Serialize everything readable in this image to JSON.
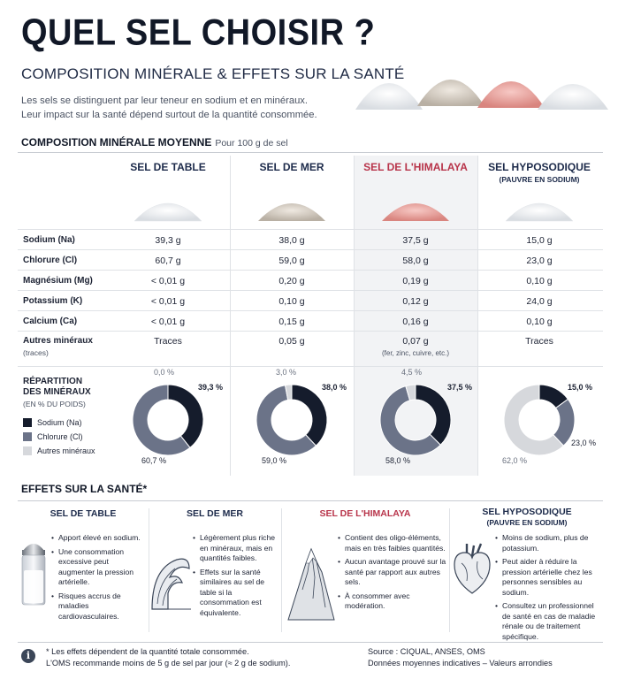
{
  "header": {
    "title": "QUEL SEL CHOISIR ?",
    "subtitle": "COMPOSITION MINÉRALE & EFFETS SUR LA SANTÉ",
    "intro_line1": "Les sels se distinguent par leur teneur en sodium et en minéraux.",
    "intro_line2": "Leur impact sur la santé dépend surtout de la quantité consommée."
  },
  "composition": {
    "heading": "COMPOSITION MINÉRALE MOYENNE",
    "heading_sub": "Pour 100 g de sel",
    "columns": [
      {
        "name": "SEL DE TABLE",
        "note": ""
      },
      {
        "name": "SEL DE MER",
        "note": ""
      },
      {
        "name": "SEL DE L'HIMALAYA",
        "note": ""
      },
      {
        "name": "SEL HYPOSODIQUE",
        "note": "(PAUVRE EN SODIUM)"
      }
    ],
    "rows": [
      {
        "label": "Sodium (Na)",
        "label_note": "",
        "values": [
          "39,3 g",
          "38,0 g",
          "37,5 g",
          "15,0 g"
        ],
        "extra": [
          "",
          "",
          "",
          ""
        ]
      },
      {
        "label": "Chlorure (Cl)",
        "label_note": "",
        "values": [
          "60,7 g",
          "59,0 g",
          "58,0 g",
          "23,0 g"
        ],
        "extra": [
          "",
          "",
          "",
          ""
        ]
      },
      {
        "label": "Magnésium (Mg)",
        "label_note": "",
        "values": [
          "< 0,01 g",
          "0,20 g",
          "0,19 g",
          "0,10 g"
        ],
        "extra": [
          "",
          "",
          "",
          ""
        ]
      },
      {
        "label": "Potassium (K)",
        "label_note": "",
        "values": [
          "< 0,01 g",
          "0,10 g",
          "0,12 g",
          "24,0 g"
        ],
        "extra": [
          "",
          "",
          "",
          ""
        ]
      },
      {
        "label": "Calcium (Ca)",
        "label_note": "",
        "values": [
          "< 0,01 g",
          "0,15 g",
          "0,16 g",
          "0,10 g"
        ],
        "extra": [
          "",
          "",
          "",
          ""
        ]
      },
      {
        "label": "Autres minéraux",
        "label_note": "(traces)",
        "values": [
          "Traces",
          "0,05 g",
          "0,07 g",
          "Traces"
        ],
        "extra": [
          "",
          "",
          "(fer, zinc, cuivre, etc.)",
          ""
        ]
      }
    ],
    "repartition": {
      "label_line1": "RÉPARTITION",
      "label_line2": "DES MINÉRAUX",
      "label_note": "(EN % DU POIDS)",
      "legend": [
        {
          "name": "Sodium (Na)",
          "color": "#151c2c"
        },
        {
          "name": "Chlorure (Cl)",
          "color": "#6b7388"
        },
        {
          "name": "Autres minéraux",
          "color": "#d6d8dc"
        }
      ]
    }
  },
  "chart_data": {
    "type": "pie",
    "categories": [
      "Sodium (Na)",
      "Chlorure (Cl)",
      "Autres minéraux"
    ],
    "series": [
      {
        "name": "SEL DE TABLE",
        "values": [
          39.3,
          60.7,
          0.0
        ],
        "labels": [
          "39,3 %",
          "60,7 %",
          "0,0 %"
        ]
      },
      {
        "name": "SEL DE MER",
        "values": [
          38.0,
          59.0,
          3.0
        ],
        "labels": [
          "38,0 %",
          "59,0 %",
          "3,0 %"
        ]
      },
      {
        "name": "SEL DE L'HIMALAYA",
        "values": [
          37.5,
          58.0,
          4.5
        ],
        "labels": [
          "37,5 %",
          "58,0 %",
          "4,5 %"
        ]
      },
      {
        "name": "SEL HYPOSODIQUE",
        "values": [
          15.0,
          23.0,
          62.0
        ],
        "labels": [
          "15,0 %",
          "23,0 %",
          "62,0 %"
        ]
      }
    ],
    "colors": [
      "#151c2c",
      "#6b7388",
      "#d6d8dc"
    ]
  },
  "effets": {
    "heading": "EFFETS SUR LA SANTÉ*",
    "items": [
      {
        "title": "SEL DE TABLE",
        "note": "",
        "icon": "salt-shaker-icon",
        "bullets": [
          "Apport élevé en sodium.",
          "Une consommation excessive peut augmenter la pression artérielle.",
          "Risques accrus de maladies cardiovasculaires."
        ]
      },
      {
        "title": "SEL DE MER",
        "note": "",
        "icon": "wave-icon",
        "bullets": [
          "Légèrement plus riche en minéraux, mais en quantités faibles.",
          "Effets sur la santé similaires au sel de table si la consommation est équivalente."
        ]
      },
      {
        "title": "SEL DE L'HIMALAYA",
        "note": "",
        "icon": "mountain-icon",
        "bullets": [
          "Contient des oligo-éléments, mais en très faibles quantités.",
          "Aucun avantage prouvé sur la santé par rapport aux autres sels.",
          "À consommer avec modération."
        ]
      },
      {
        "title": "SEL HYPOSODIQUE",
        "note": "(PAUVRE EN SODIUM)",
        "icon": "heart-icon",
        "bullets": [
          "Moins de sodium, plus de potassium.",
          "Peut aider à réduire la pression artérielle chez les personnes sensibles au sodium.",
          "Consultez un professionnel de santé en cas de maladie rénale ou de traitement spécifique."
        ]
      }
    ]
  },
  "footer": {
    "note_line1": "* Les effets dépendent de la quantité totale consommée.",
    "note_line2": "L'OMS recommande moins de 5 g de sel par jour (≈ 2 g de sodium).",
    "source_line1": "Source : CIQUAL, ANSES, OMS",
    "source_line2": "Données moyennes indicatives – Valeurs arrondies"
  }
}
